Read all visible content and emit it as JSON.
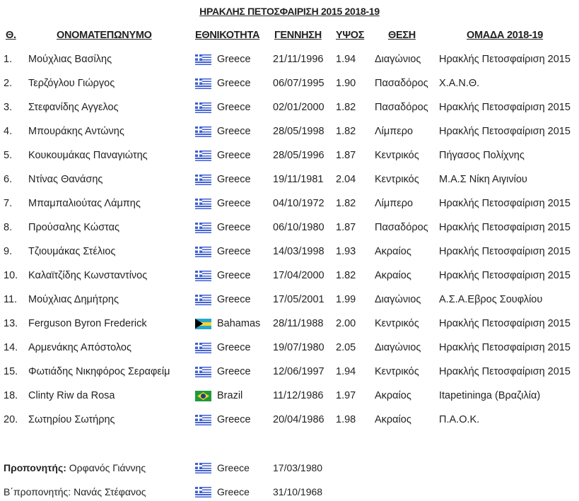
{
  "title": "ΗΡΑΚΛΗΣ ΠΕΤΟΣΦΑΙΡΙΣΗ 2015 2018-19",
  "headers": {
    "num": "Θ.",
    "name": "ΟΝΟΜΑΤΕΠΩΝΥΜΟ",
    "nationality": "ΕΘΝΙΚΟΤΗΤΑ",
    "birth": "ΓΕΝΝΗΣΗ",
    "height": "ΥΨΟΣ",
    "position": "ΘΕΣΗ",
    "team": "ΟΜΑΔΑ 2018-19"
  },
  "players": [
    {
      "num": "1.",
      "name": "Μούχλιας Βασίλης",
      "flag": "greece-flag",
      "nat": "Greece",
      "birth": "21/11/1996",
      "height": "1.94",
      "pos": "Διαγώνιος",
      "team": "Ηρακλής Πετοσφαίριση 2015"
    },
    {
      "num": "2.",
      "name": "Τερζόγλου Γιώργος",
      "flag": "greece-flag",
      "nat": "Greece",
      "birth": "06/07/1995",
      "height": "1.90",
      "pos": "Πασαδόρος",
      "team": "Χ.Α.Ν.Θ."
    },
    {
      "num": "3.",
      "name": "Στεφανίδης Αγγελος",
      "flag": "greece-flag",
      "nat": "Greece",
      "birth": "02/01/2000",
      "height": "1.82",
      "pos": "Πασαδόρος",
      "team": "Ηρακλής Πετοσφαίριση 2015"
    },
    {
      "num": "4.",
      "name": "Μπουράκης Αντώνης",
      "flag": "greece-flag",
      "nat": "Greece",
      "birth": "28/05/1998",
      "height": "1.82",
      "pos": "Λίμπερο",
      "team": "Ηρακλής Πετοσφαίριση 2015"
    },
    {
      "num": "5.",
      "name": "Κουκουμάκας Παναγιώτης",
      "flag": "greece-flag",
      "nat": "Greece",
      "birth": "28/05/1996",
      "height": "1.87",
      "pos": "Κεντρικός",
      "team": "Πήγασος Πολίχνης"
    },
    {
      "num": "6.",
      "name": "Ντίνας Θανάσης",
      "flag": "greece-flag",
      "nat": "Greece",
      "birth": "19/11/1981",
      "height": "2.04",
      "pos": "Κεντρικός",
      "team": "Μ.Α.Σ Νίκη Αιγινίου"
    },
    {
      "num": "7.",
      "name": "Μπαμπαλιούτας Λάμπης",
      "flag": "greece-flag",
      "nat": "Greece",
      "birth": "04/10/1972",
      "height": "1.82",
      "pos": "Λίμπερο",
      "team": "Ηρακλής Πετοσφαίριση 2015"
    },
    {
      "num": "8.",
      "name": "Προύσαλης Κώστας",
      "flag": "greece-flag",
      "nat": "Greece",
      "birth": "06/10/1980",
      "height": "1.87",
      "pos": "Πασαδόρος",
      "team": "Ηρακλής Πετοσφαίριση 2015"
    },
    {
      "num": "9.",
      "name": "Τζιουμάκας Στέλιος",
      "flag": "greece-flag",
      "nat": "Greece",
      "birth": "14/03/1998",
      "height": "1.93",
      "pos": "Ακραίος",
      "team": "Ηρακλής Πετοσφαίριση 2015"
    },
    {
      "num": "10.",
      "name": "Καλαϊτζίδης Κωνσταντίνος",
      "flag": "greece-flag",
      "nat": "Greece",
      "birth": "17/04/2000",
      "height": "1.82",
      "pos": "Ακραίος",
      "team": "Ηρακλής Πετοσφαίριση 2015"
    },
    {
      "num": "11.",
      "name": "Μούχλιας Δημήτρης",
      "flag": "greece-flag",
      "nat": "Greece",
      "birth": "17/05/2001",
      "height": "1.99",
      "pos": "Διαγώνιος",
      "team": "Α.Σ.Α.Εβρος Σουφλίου"
    },
    {
      "num": "13.",
      "name": "Ferguson Byron Frederick",
      "flag": "bahamas-flag",
      "nat": "Bahamas",
      "birth": "28/11/1988",
      "height": "2.00",
      "pos": "Κεντρικός",
      "team": "Ηρακλής Πετοσφαίριση 2015"
    },
    {
      "num": "14.",
      "name": "Αρμενάκης Απόστολος",
      "flag": "greece-flag",
      "nat": "Greece",
      "birth": "19/07/1980",
      "height": "2.05",
      "pos": "Διαγώνιος",
      "team": "Ηρακλής Πετοσφαίριση 2015"
    },
    {
      "num": "15.",
      "name": "Φωτιάδης Νικηφόρος Σεραφείμ",
      "flag": "greece-flag",
      "nat": "Greece",
      "birth": "12/06/1997",
      "height": "1.94",
      "pos": "Κεντρικός",
      "team": "Ηρακλής Πετοσφαίριση 2015"
    },
    {
      "num": "18.",
      "name": "Clinty Riw da Rosa",
      "flag": "brazil-flag",
      "nat": "Brazil",
      "birth": "11/12/1986",
      "height": "1.97",
      "pos": "Ακραίος",
      "team": "Itapetininga (Βραζιλία)"
    },
    {
      "num": "20.",
      "name": "Σωτηρίου Σωτήρης",
      "flag": "greece-flag",
      "nat": "Greece",
      "birth": "20/04/1986",
      "height": "1.98",
      "pos": "Ακραίος",
      "team": "Π.Α.Ο.Κ."
    }
  ],
  "staff": [
    {
      "label": "Προπονητής:",
      "name": " Ορφανός Γιάννης",
      "flag": "greece-flag",
      "nat": "Greece",
      "birth": "17/03/1980"
    },
    {
      "label": "",
      "name": "Β΄προπονητής: Νανάς Στέφανος",
      "flag": "greece-flag",
      "nat": "Greece",
      "birth": "31/10/1968"
    }
  ]
}
